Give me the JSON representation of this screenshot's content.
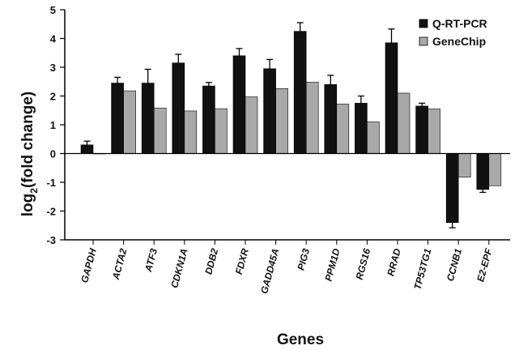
{
  "chart_data": {
    "type": "bar",
    "categories": [
      "GAPDH",
      "ACTA2",
      "ATF3",
      "CDKN1A",
      "DDB2",
      "FDXR",
      "GADD45A",
      "PIG3",
      "PPM1D",
      "RGS16",
      "RRAD",
      "TP53TG1",
      "CCNB1",
      "E2-EPF"
    ],
    "series": [
      {
        "name": "Q-RT-PCR",
        "color": "#111111",
        "values": [
          0.3,
          2.45,
          2.45,
          3.15,
          2.35,
          3.4,
          2.95,
          4.25,
          2.4,
          1.75,
          3.85,
          1.65,
          -2.4,
          -1.25
        ],
        "errors": [
          0.13,
          0.2,
          0.48,
          0.3,
          0.12,
          0.25,
          0.32,
          0.3,
          0.32,
          0.25,
          0.48,
          0.1,
          0.18,
          0.1
        ]
      },
      {
        "name": "GeneChip",
        "color": "#a9a9a9",
        "values": [
          0.0,
          2.18,
          1.58,
          1.48,
          1.56,
          1.97,
          2.26,
          2.48,
          1.72,
          1.1,
          2.1,
          1.55,
          -0.82,
          -1.12
        ]
      }
    ],
    "xlabel": "Genes",
    "ylabel_main": "log",
    "ylabel_sub": "2",
    "ylabel_rest": "(fold change)",
    "ylim": [
      -3,
      5
    ],
    "yticks": [
      -3,
      -2,
      -1,
      0,
      1,
      2,
      3,
      4,
      5
    ],
    "legend_position": "top-right",
    "grid": false
  }
}
